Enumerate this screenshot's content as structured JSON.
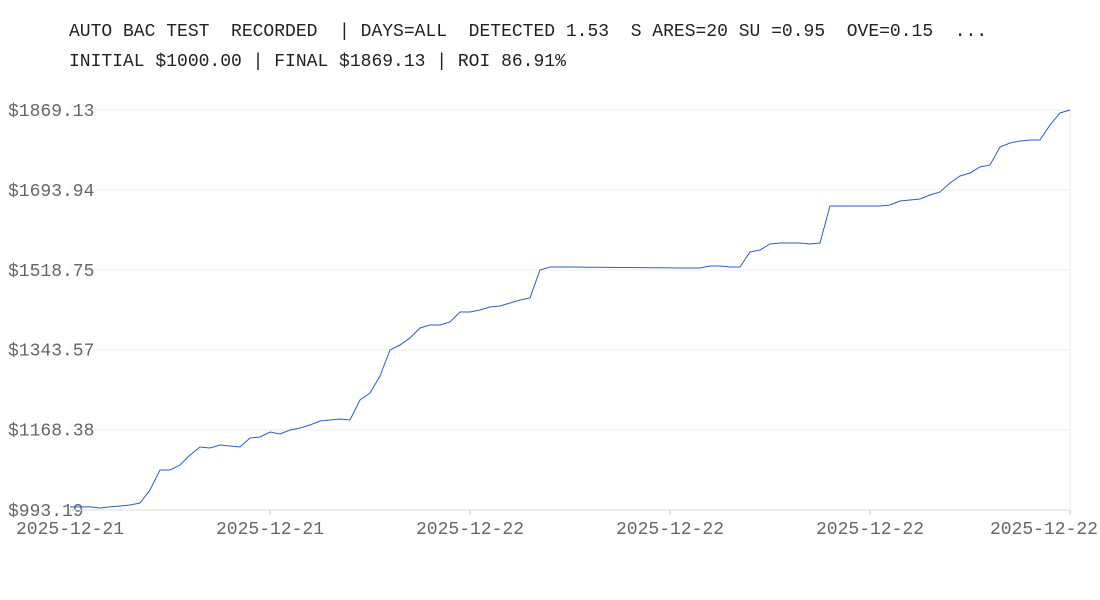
{
  "chart_data": {
    "type": "line",
    "title": "AUTO BAC TEST  RECORDED  | DAYS=ALL  DETECTED 1.53  S ARES=20 SU =0.95  OVE=0.15  ...",
    "subtitle": "INITIAL $1000.00 | FINAL $1869.13 | ROI 86.91%",
    "series": [
      {
        "color": "#2a5bd7",
        "values": [
          1000,
          1000,
          1000,
          997.6,
          1000,
          1002,
          1004.1,
          1008.5,
          1037,
          1080.8,
          1080.8,
          1091.7,
          1113.6,
          1131.2,
          1129,
          1135.5,
          1133.3,
          1131.2,
          1150.9,
          1153.1,
          1164,
          1159.6,
          1168.4,
          1172.8,
          1179.3,
          1188.1,
          1190.3,
          1192.5,
          1190.3,
          1234.1,
          1249.4,
          1286.6,
          1343.6,
          1354.5,
          1369.9,
          1391.8,
          1398.3,
          1398.3,
          1404.9,
          1426.8,
          1426.8,
          1431.2,
          1437.8,
          1439.9,
          1446.5,
          1453.1,
          1457.5,
          1518.8,
          1525.4,
          1525.4,
          1525.2,
          1525,
          1524.8,
          1524.7,
          1524.5,
          1524.3,
          1524.1,
          1524,
          1523.8,
          1523.6,
          1523.4,
          1523.2,
          1523.2,
          1523.2,
          1527.5,
          1527.5,
          1525.4,
          1525.4,
          1558.2,
          1562.6,
          1575.7,
          1577.9,
          1577.9,
          1577.9,
          1575.7,
          1577.9,
          1658.9,
          1658.9,
          1658.9,
          1658.9,
          1658.9,
          1658.9,
          1661.1,
          1669.9,
          1672.1,
          1674.3,
          1683,
          1689.6,
          1709.3,
          1724.6,
          1731.2,
          1744.4,
          1748.7,
          1788.1,
          1796.9,
          1801.3,
          1803.5,
          1803.5,
          1836.3,
          1862.6,
          1869.13
        ]
      }
    ],
    "xlim": [
      0,
      100
    ],
    "xticks": [
      {
        "value": 0,
        "label": "2025-12-21"
      },
      {
        "value": 20,
        "label": "2025-12-21"
      },
      {
        "value": 40,
        "label": "2025-12-22"
      },
      {
        "value": 60,
        "label": "2025-12-22"
      },
      {
        "value": 80,
        "label": "2025-12-22"
      },
      {
        "value": 100,
        "label": "2025-12-22"
      }
    ],
    "ylim": [
      993.19,
      1869.13
    ],
    "yticks": [
      {
        "value": 993.19,
        "label": "$993.19"
      },
      {
        "value": 1168.38,
        "label": "$1168.38"
      },
      {
        "value": 1343.57,
        "label": "$1343.57"
      },
      {
        "value": 1518.75,
        "label": "$1518.75"
      },
      {
        "value": 1693.94,
        "label": "$1693.94"
      },
      {
        "value": 1869.13,
        "label": "$1869.13"
      }
    ],
    "grid": true
  }
}
